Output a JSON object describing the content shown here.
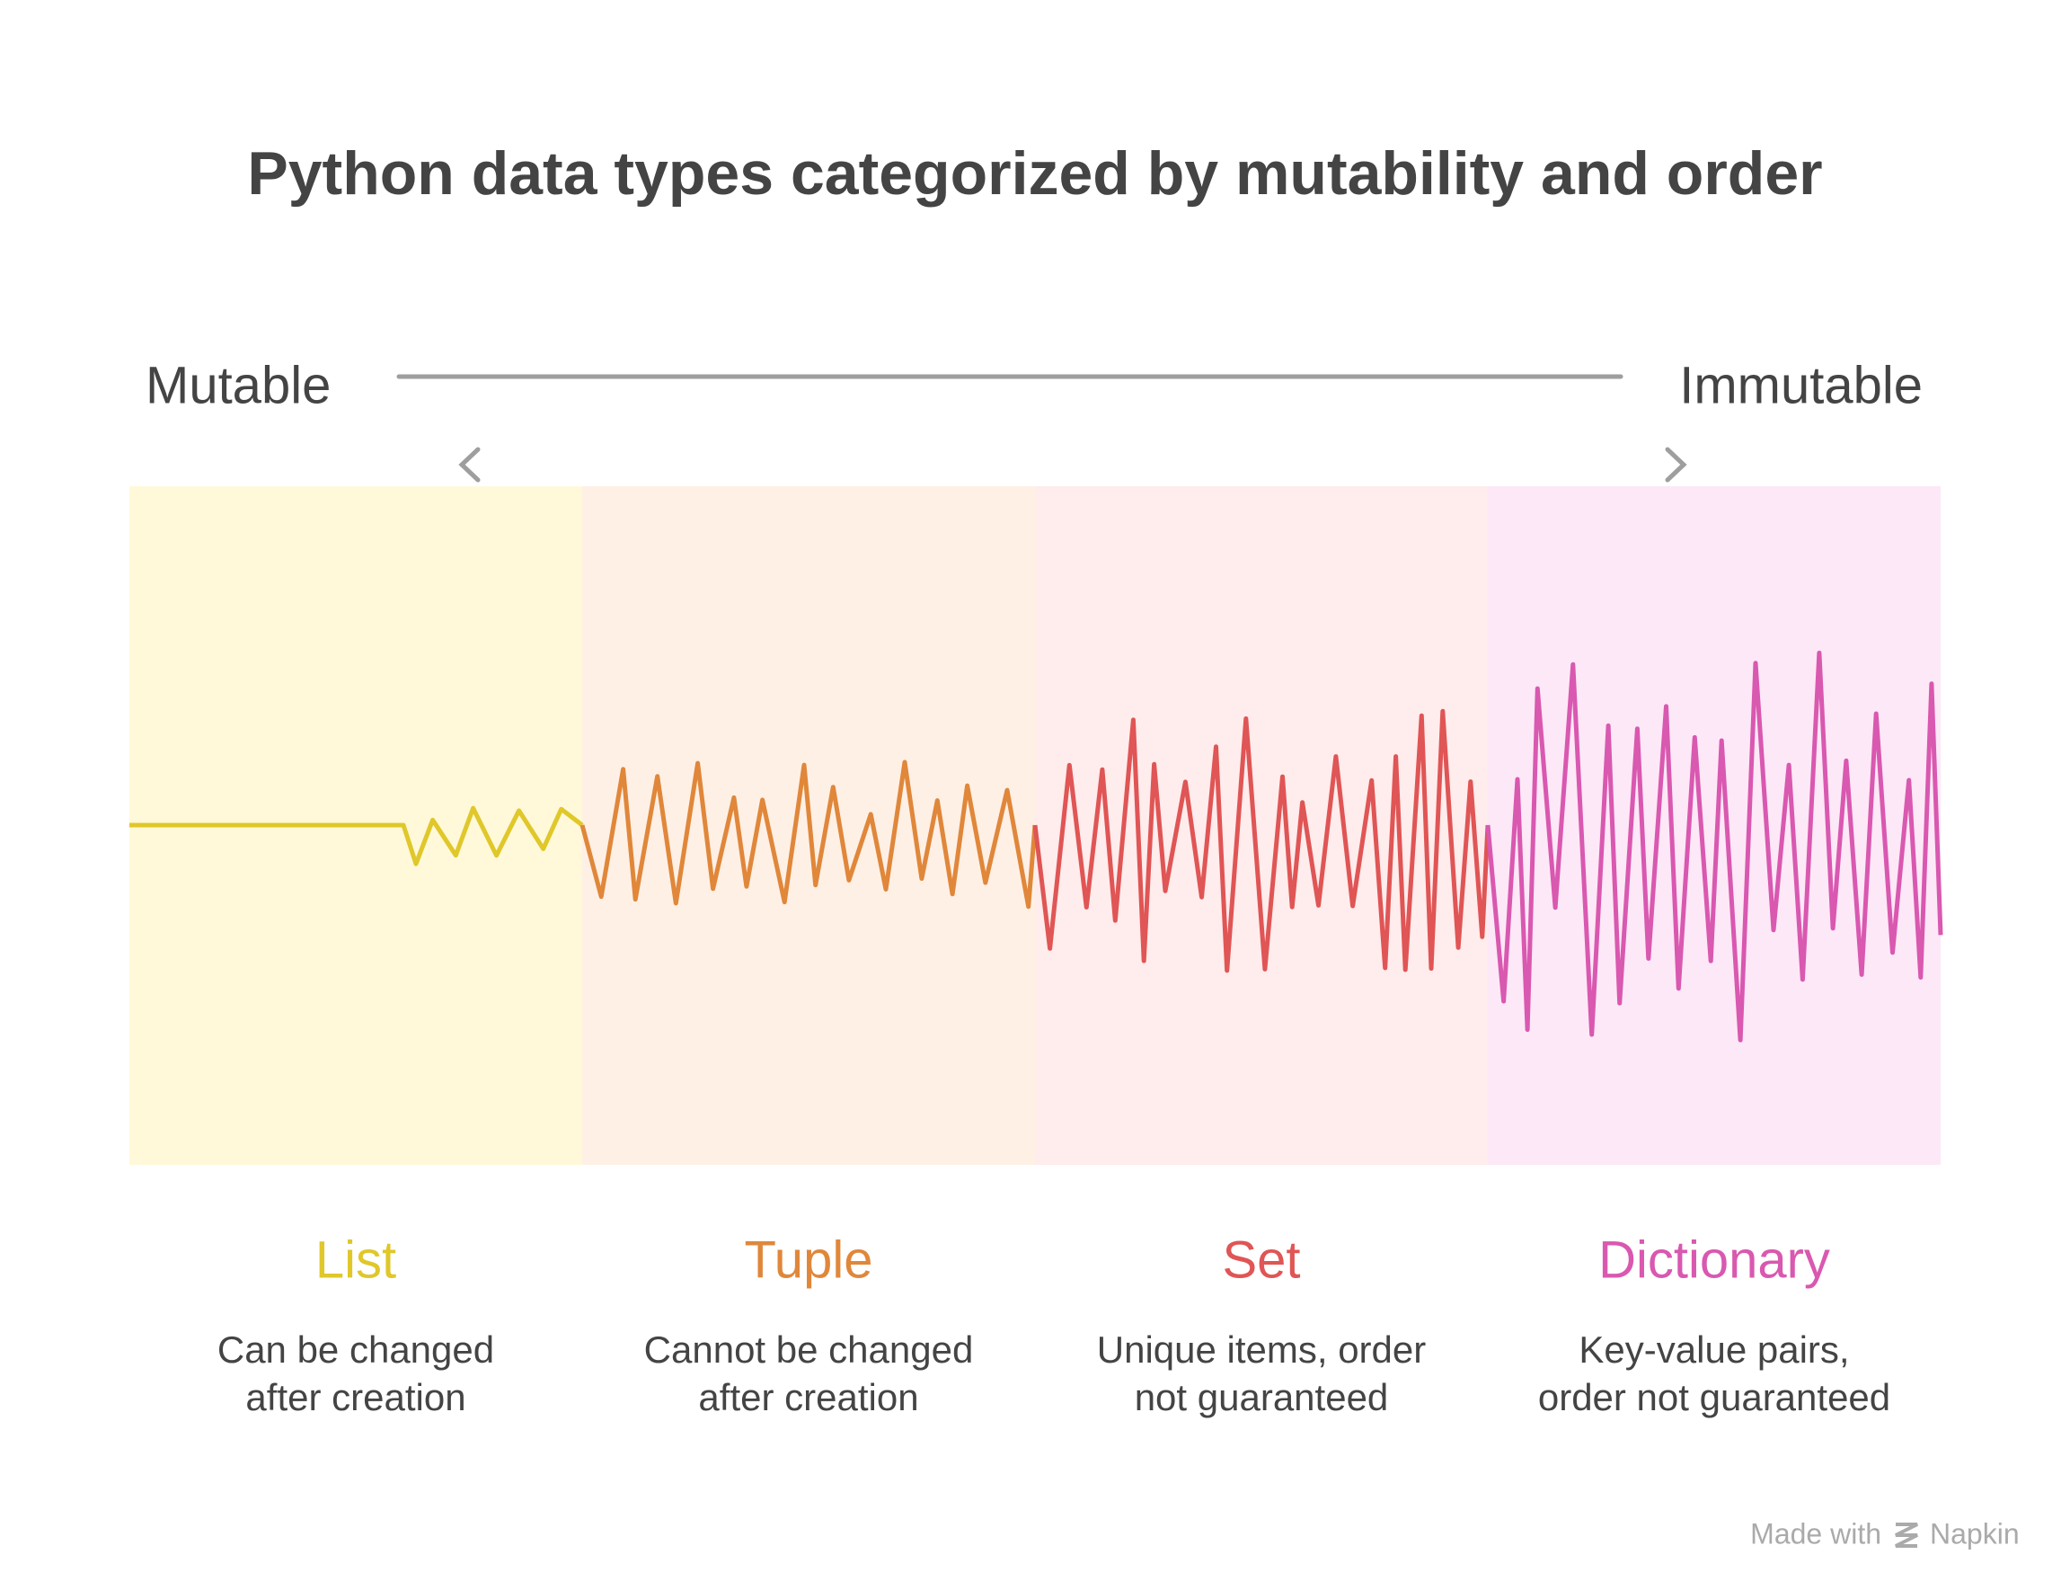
{
  "title": "Python data types categorized by mutability and order",
  "scale": {
    "left": "Mutable",
    "right": "Immutable"
  },
  "sections": [
    {
      "name": "List",
      "description": [
        "Can be changed",
        "after creation"
      ]
    },
    {
      "name": "Tuple",
      "description": [
        "Cannot be changed",
        "after creation"
      ]
    },
    {
      "name": "Set",
      "description": [
        "Unique items, order",
        "not guaranteed"
      ]
    },
    {
      "name": "Dictionary",
      "description": [
        "Key-value pairs,",
        "order not guaranteed"
      ]
    }
  ],
  "footer": {
    "prefix": "Made with",
    "brand": "Napkin"
  }
}
